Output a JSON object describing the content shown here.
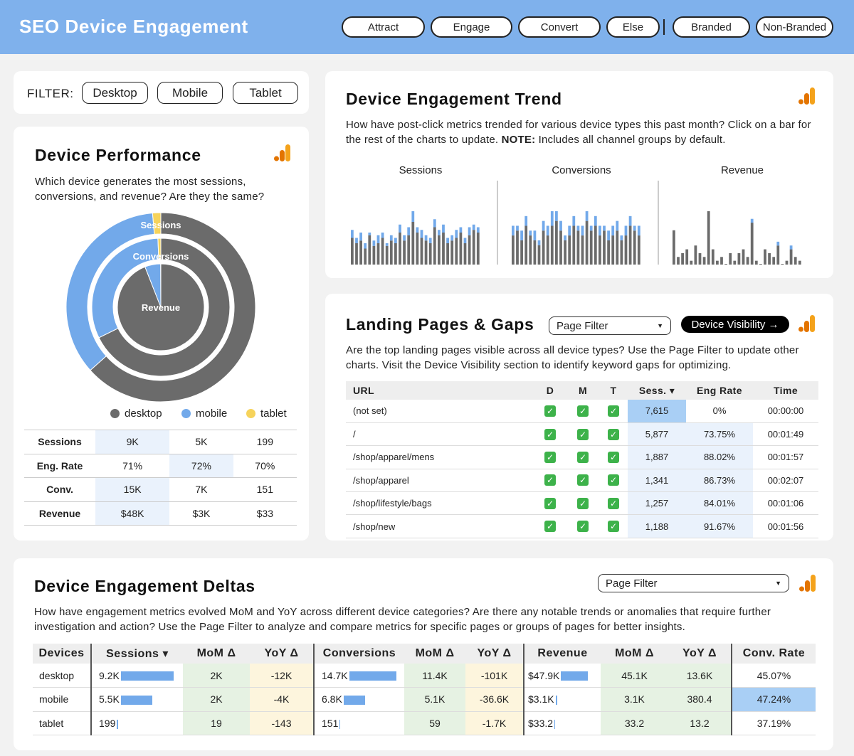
{
  "header": {
    "title": "SEO Device Engagement",
    "tabs": [
      "Attract",
      "Engage",
      "Convert",
      "Else"
    ],
    "branding": [
      "Branded",
      "Non-Branded"
    ]
  },
  "filter": {
    "label": "FILTER:",
    "options": [
      "Desktop",
      "Mobile",
      "Tablet"
    ]
  },
  "device_performance": {
    "title": "Device Performance",
    "description": "Which device generates the most sessions, conversions, and revenue? Are they the same?",
    "ring_labels": [
      "Sessions",
      "Conversions",
      "Revenue"
    ],
    "legend": [
      {
        "name": "desktop",
        "color": "#6b6b6b"
      },
      {
        "name": "mobile",
        "color": "#72a9ea"
      },
      {
        "name": "tablet",
        "color": "#f6d35b"
      }
    ],
    "table": [
      {
        "metric": "Sessions",
        "desktop": "9K",
        "mobile": "5K",
        "tablet": "199"
      },
      {
        "metric": "Eng. Rate",
        "desktop": "71%",
        "mobile": "72%",
        "tablet": "70%"
      },
      {
        "metric": "Conv.",
        "desktop": "15K",
        "mobile": "7K",
        "tablet": "151"
      },
      {
        "metric": "Revenue",
        "desktop": "$48K",
        "mobile": "$3K",
        "tablet": "$33"
      }
    ]
  },
  "trend": {
    "title": "Device Engagement Trend",
    "description_1": "How have post-click metrics trended for various device types this past month? Click on a bar for the rest of the charts to update. ",
    "note_label": "NOTE:",
    "description_2": " Includes all channel groups by default.",
    "chart_labels": [
      "Sessions",
      "Conversions",
      "Revenue"
    ]
  },
  "chart_data": [
    {
      "type": "bar",
      "title": "Sessions",
      "series": [
        {
          "name": "desktop",
          "values": [
            10,
            8,
            9,
            6,
            11,
            7,
            8,
            10,
            7,
            9,
            8,
            12,
            9,
            11,
            16,
            12,
            10,
            9,
            8,
            14,
            11,
            12,
            8,
            9,
            10,
            12,
            8,
            11,
            13,
            12
          ]
        },
        {
          "name": "mobile",
          "values": [
            3,
            2,
            3,
            2,
            1,
            2,
            3,
            2,
            1,
            2,
            2,
            3,
            2,
            3,
            4,
            2,
            3,
            2,
            2,
            3,
            2,
            3,
            2,
            2,
            3,
            2,
            2,
            3,
            2,
            2
          ]
        }
      ]
    },
    {
      "type": "bar",
      "title": "Conversions",
      "series": [
        {
          "name": "desktop",
          "values": [
            6,
            7,
            5,
            8,
            6,
            5,
            4,
            7,
            6,
            8,
            9,
            7,
            5,
            6,
            8,
            7,
            6,
            9,
            7,
            8,
            6,
            7,
            5,
            6,
            7,
            5,
            6,
            8,
            7,
            6
          ]
        },
        {
          "name": "mobile",
          "values": [
            2,
            1,
            2,
            2,
            1,
            2,
            1,
            2,
            2,
            3,
            2,
            2,
            1,
            2,
            2,
            1,
            2,
            2,
            1,
            2,
            2,
            1,
            2,
            2,
            2,
            1,
            2,
            2,
            1,
            2
          ]
        }
      ]
    },
    {
      "type": "bar",
      "title": "Revenue",
      "series": [
        {
          "name": "desktop",
          "values": [
            9,
            2,
            3,
            4,
            1,
            5,
            3,
            2,
            14,
            4,
            1,
            2,
            0,
            3,
            1,
            3,
            4,
            2,
            11,
            1,
            0,
            4,
            3,
            2,
            5,
            0,
            1,
            4,
            2,
            1
          ]
        },
        {
          "name": "mobile",
          "values": [
            0,
            0,
            0,
            0,
            0,
            0,
            0,
            0,
            0,
            0,
            0,
            0,
            0,
            0,
            0,
            0,
            0,
            0,
            1,
            0,
            0,
            0,
            0,
            0,
            1,
            0,
            0,
            1,
            0,
            0
          ]
        }
      ]
    }
  ],
  "landing_pages": {
    "title": "Landing Pages & Gaps",
    "page_filter": "Page Filter",
    "visibility_button": "Device Visibility →",
    "description": "Are the top landing pages visible across all device types? Use the Page Filter to update other charts. Visit the Device Visibility section to identify keyword gaps for optimizing.",
    "columns": [
      "URL",
      "D",
      "M",
      "T",
      "Sess. ▾",
      "Eng Rate",
      "Time"
    ],
    "check": "✓",
    "rows": [
      {
        "url": "(not set)",
        "sess": "7,615",
        "eng": "0%",
        "time": "00:00:00"
      },
      {
        "url": "/",
        "sess": "5,877",
        "eng": "73.75%",
        "time": "00:01:49"
      },
      {
        "url": "/shop/apparel/mens",
        "sess": "1,887",
        "eng": "88.02%",
        "time": "00:01:57"
      },
      {
        "url": "/shop/apparel",
        "sess": "1,341",
        "eng": "86.73%",
        "time": "00:02:07"
      },
      {
        "url": "/shop/lifestyle/bags",
        "sess": "1,257",
        "eng": "84.01%",
        "time": "00:01:06"
      },
      {
        "url": "/shop/new",
        "sess": "1,188",
        "eng": "91.67%",
        "time": "00:01:56"
      }
    ]
  },
  "deltas": {
    "title": "Device Engagement Deltas",
    "page_filter": "Page Filter",
    "description": "How have engagement metrics evolved MoM and YoY across different device categories? Are there any notable trends or anomalies that require further investigation and action? Use the Page Filter to analyze and compare metrics for specific pages or groups of pages for better insights.",
    "columns": [
      "Devices",
      "Sessions ▾",
      "MoM Δ",
      "YoY Δ",
      "Conversions",
      "MoM Δ",
      "YoY Δ",
      "Revenue",
      "MoM Δ",
      "YoY Δ",
      "Conv. Rate"
    ],
    "rows": [
      {
        "device": "desktop",
        "sessions": "9.2K",
        "sessions_share": 1.0,
        "s_mom": "2K",
        "s_yoy": "-12K",
        "conversions": "14.7K",
        "conv_share": 1.0,
        "c_mom": "11.4K",
        "c_yoy": "-101K",
        "revenue": "$47.9K",
        "rev_share": 1.0,
        "r_mom": "45.1K",
        "r_yoy": "13.6K",
        "conv_rate": "45.07%"
      },
      {
        "device": "mobile",
        "sessions": "5.5K",
        "sessions_share": 0.6,
        "s_mom": "2K",
        "s_yoy": "-4K",
        "conversions": "6.8K",
        "conv_share": 0.46,
        "c_mom": "5.1K",
        "c_yoy": "-36.6K",
        "revenue": "$3.1K",
        "rev_share": 0.065,
        "r_mom": "3.1K",
        "r_yoy": "380.4",
        "conv_rate": "47.24%"
      },
      {
        "device": "tablet",
        "sessions": "199",
        "sessions_share": 0.022,
        "s_mom": "19",
        "s_yoy": "-143",
        "conversions": "151",
        "conv_share": 0.01,
        "c_mom": "59",
        "c_yoy": "-1.7K",
        "revenue": "$33.2",
        "rev_share": 0.001,
        "r_mom": "33.2",
        "r_yoy": "13.2",
        "conv_rate": "37.19%"
      }
    ]
  },
  "colors": {
    "header": "#7fb1ec",
    "desktop": "#6b6b6b",
    "mobile": "#72a9ea",
    "tablet": "#f6d35b",
    "ga_orange": "#f4a21b",
    "ga_dark": "#e37400"
  }
}
